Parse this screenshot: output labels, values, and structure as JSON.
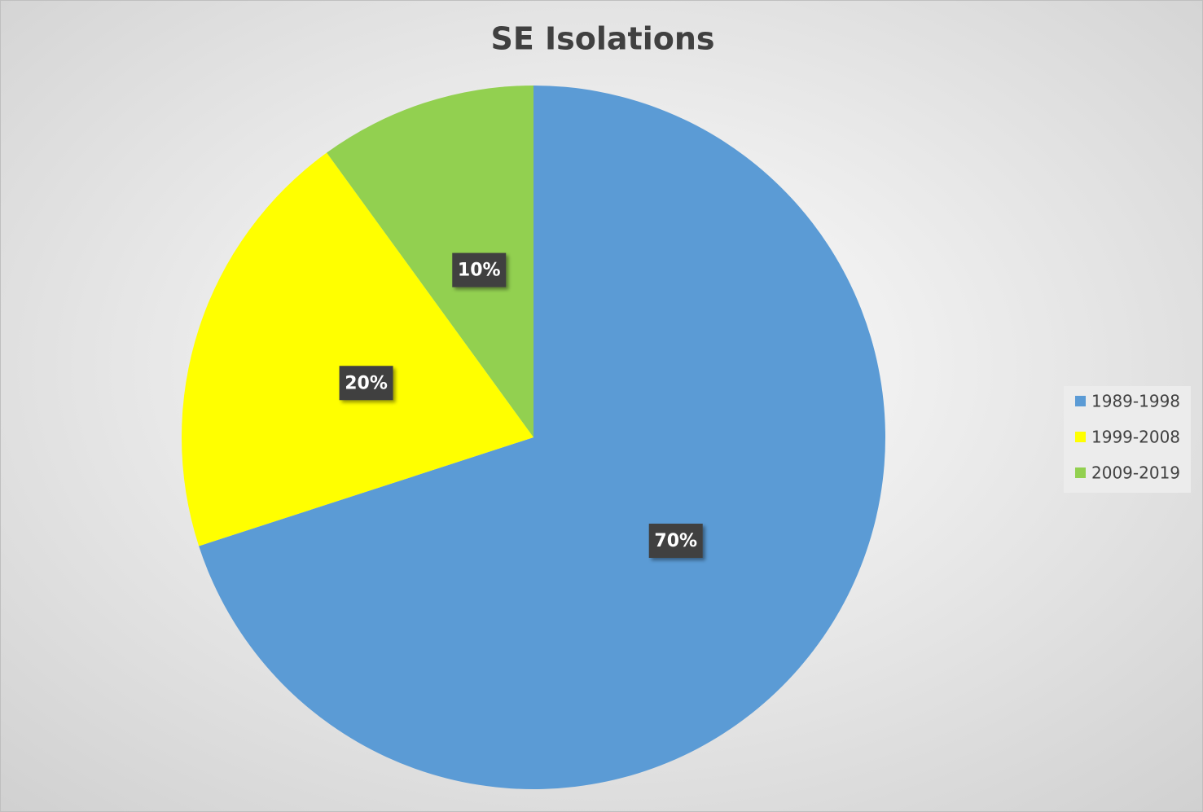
{
  "chart_data": {
    "type": "pie",
    "title": "SE Isolations",
    "categories": [
      "1989-1998",
      "1999-2008",
      "2009-2019"
    ],
    "values": [
      70,
      20,
      10
    ],
    "value_labels": [
      "70%",
      "20%",
      "10%"
    ],
    "colors": [
      "#5b9bd5",
      "#ffff00",
      "#92d050"
    ],
    "legend": "right"
  }
}
